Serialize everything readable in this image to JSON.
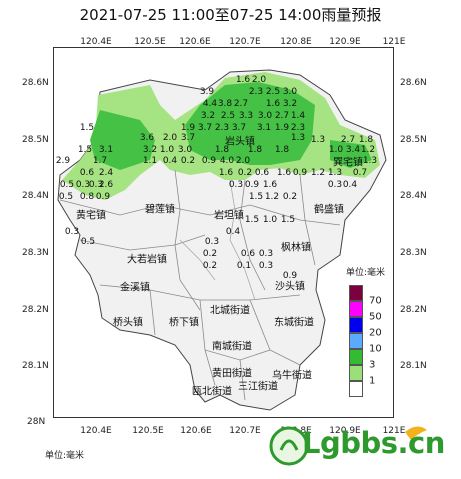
{
  "title": "2021-07-25 11:00至07-25 14:00雨量预报",
  "axes": {
    "lon_top": [
      "120.4E",
      "120.5E",
      "120.6E",
      "120.7E",
      "120.8E",
      "120.9E",
      "121E"
    ],
    "lon_bottom": [
      "120.4E",
      "120.5E",
      "120.6E",
      "120.7E",
      "120.8E",
      "120.9E",
      "121E"
    ],
    "lat_left": [
      "28.6N",
      "28.5N",
      "28.4N",
      "28.3N",
      "28.2N",
      "28.1N",
      "28N"
    ],
    "lat_right": [
      "28.6N",
      "28.5N",
      "28.4N",
      "28.3N",
      "28.2N",
      "28.1N"
    ]
  },
  "places": {
    "p1": "黄宅镇",
    "p2": "碧莲镇",
    "p3": "巽宅镇",
    "p4": "岩头镇",
    "p5": "岩坦镇",
    "p6": "鹤盛镇",
    "p7": "金溪镇",
    "p8": "枫林镇",
    "p9": "沙头镇",
    "p10": "桥头镇",
    "p11": "桥下镇",
    "p12": "北城街道",
    "p13": "东城街道",
    "p14": "南城街道",
    "p15": "瓯北街道",
    "p16": "黄田街道",
    "p17": "乌牛街道",
    "p18": "三江街道",
    "p19": "岩头镇2",
    "p20": "大若岩镇"
  },
  "legend": {
    "title": "单位:毫米",
    "items": [
      {
        "label": "70",
        "color": "#7a0040"
      },
      {
        "label": "50",
        "color": "#ff00ff"
      },
      {
        "label": "20",
        "color": "#0000ee"
      },
      {
        "label": "10",
        "color": "#5aaaff"
      },
      {
        "label": "3",
        "color": "#33bb33"
      },
      {
        "label": "1",
        "color": "#99e07a"
      },
      {
        "label": "",
        "color": "#ffffff"
      }
    ]
  },
  "unit": "单位:毫米",
  "watermark": "Lgbbs.cn",
  "values": {
    "v1": "1.6",
    "v2": "2.0",
    "v3": "3.9",
    "v4": "2.3",
    "v5": "2.5",
    "v6": "3.0",
    "v7": "4.4",
    "v8": "3.8",
    "v9": "2.7",
    "v10": "1.6",
    "v11": "3.2",
    "v12": "3.2",
    "v13": "2.5",
    "v14": "3.3",
    "v15": "3.0",
    "v16": "2.7",
    "v17": "1.4",
    "v18": "1.9",
    "v19": "3.7",
    "v20": "2.3",
    "v21": "3.7",
    "v22": "3.1",
    "v23": "1.9",
    "v24": "2.3",
    "v25": "1.5",
    "v26": "3.6",
    "v27": "2.0",
    "v28": "3.7",
    "v29": "1.3",
    "v30": "1.8",
    "v31": "1.5",
    "v32": "3.1",
    "v33": "3.2",
    "v34": "1.0",
    "v35": "3.0",
    "v36": "1.8",
    "v37": "1.8",
    "v38": "2.9",
    "v39": "1.7",
    "v40": "1.1",
    "v41": "0.4",
    "v42": "0.2",
    "v43": "0.9",
    "v44": "4.0",
    "v45": "2.0",
    "v46": "0.6",
    "v47": "2.4",
    "v48": "0.3",
    "v49": "1.6",
    "v50": "0.2",
    "v51": "0.6",
    "v52": "0.5",
    "v53": "0.3",
    "v54": "2.6",
    "v55": "1.6",
    "v56": "0.3",
    "v57": "0.9",
    "v58": "1.6",
    "v59": "0.5",
    "v60": "0.8",
    "v61": "0.9",
    "v62": "1.5",
    "v63": "1.2",
    "v64": "0.2",
    "v65": "1.5",
    "v66": "1.0",
    "v67": "1.5",
    "v68": "0.3",
    "v69": "0.3",
    "v70": "1.3",
    "v71": "1.0",
    "v72": "3.4",
    "v73": "1.2",
    "v74": "2.7",
    "v75": "1.8",
    "v76": "1.6",
    "v77": "0.9",
    "v78": "1.2",
    "v79": "1.3",
    "v80": "0.7",
    "v81": "1.3",
    "v82": "0.3",
    "v83": "0.5",
    "v84": "0.4",
    "v85": "0.9",
    "v86": "0.4",
    "v87": "0.3",
    "v88": "0.6",
    "v89": "0.2",
    "v90": "0.3",
    "v91": "0.1",
    "v92": "0.2"
  }
}
